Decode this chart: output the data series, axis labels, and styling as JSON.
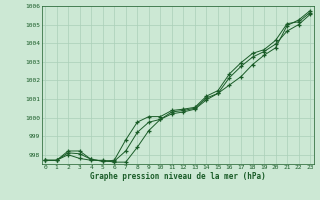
{
  "hours": [
    0,
    1,
    2,
    3,
    4,
    5,
    6,
    7,
    8,
    9,
    10,
    11,
    12,
    13,
    14,
    15,
    16,
    17,
    18,
    19,
    20,
    21,
    22,
    23
  ],
  "line1": [
    997.7,
    997.7,
    998.0,
    997.8,
    997.7,
    997.7,
    997.6,
    997.6,
    998.4,
    999.3,
    999.9,
    1000.2,
    1000.3,
    1000.45,
    1000.95,
    1001.3,
    1001.75,
    1002.2,
    1002.85,
    1003.35,
    1003.75,
    1004.95,
    1005.25,
    1005.75
  ],
  "line2": [
    997.7,
    997.7,
    998.1,
    998.05,
    997.75,
    997.65,
    997.65,
    998.2,
    999.2,
    999.75,
    999.9,
    1000.3,
    1000.38,
    1000.5,
    1001.05,
    1001.3,
    1002.15,
    1002.75,
    1003.25,
    1003.55,
    1003.95,
    1004.65,
    1005.0,
    1005.55
  ],
  "line3": [
    997.7,
    997.7,
    998.2,
    998.2,
    997.75,
    997.65,
    997.7,
    998.8,
    999.75,
    1000.05,
    1000.05,
    1000.38,
    1000.45,
    1000.55,
    1001.15,
    1001.45,
    1002.35,
    1002.95,
    1003.45,
    1003.65,
    1004.15,
    1005.05,
    1005.15,
    1005.65
  ],
  "ylim_min": 997.5,
  "ylim_max": 1006.0,
  "ytick_min": 998,
  "ytick_max": 1006,
  "bg_color": "#cce8d4",
  "grid_color": "#aacfb8",
  "line_color": "#1a5c28",
  "xlabel": "Graphe pression niveau de la mer (hPa)",
  "tick_color": "#1a5c28"
}
